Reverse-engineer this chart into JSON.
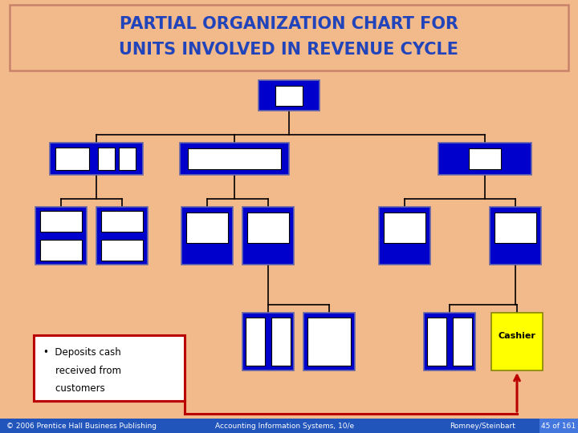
{
  "bg_color": "#F2B98A",
  "title_text_line1": "PARTIAL ORGANIZATION CHART FOR",
  "title_text_line2": "UNITS INVOLVED IN REVENUE CYCLE",
  "title_border_color": "#C8826A",
  "title_text_color": "#2244BB",
  "blue_box_color": "#0000CC",
  "blue_box_edge": "#6666AA",
  "white_inner_color": "#FFFFFF",
  "footer_bg": "#2255BB",
  "footer_text_color": "#FFFFFF",
  "footer_left": "© 2006 Prentice Hall Business Publishing",
  "footer_mid": "Accounting Information Systems, 10/e",
  "footer_right": "Romney/Steinbart",
  "footer_page": "45 of 161",
  "footer_page_bg": "#4477DD",
  "cashier_bg": "#FFFF00",
  "cashier_text": "Cashier",
  "bullet_line1": "•  Deposits cash",
  "bullet_line2": "    received from",
  "bullet_line3": "    customers",
  "red_color": "#BB0000",
  "line_color": "#000000"
}
